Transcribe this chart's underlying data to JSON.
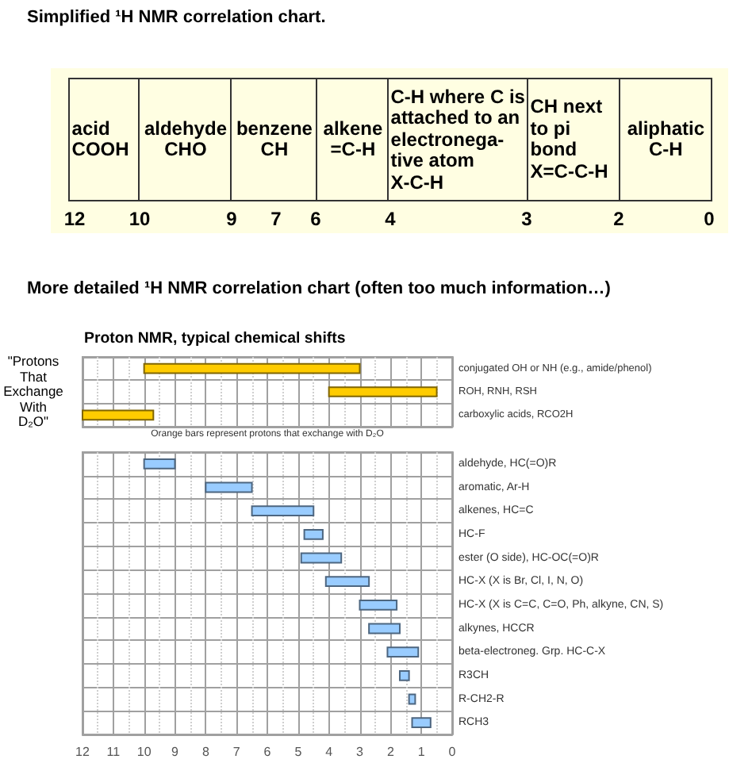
{
  "chart_data": [
    {
      "type": "other",
      "title": "Simplified ¹H NMR correlation chart.",
      "categories": [
        "acid\nCOOH",
        "aldehyde\nCHO",
        "benzene\nCH",
        "alkene\n=C-H",
        "C-H where C is\nattached to an\nelectronega-\ntive atom\nX-C-H",
        "CH next\nto pi\nbond\nX=C-C-H",
        "aliphatic\nC-H"
      ],
      "annotations": [
        "12",
        "10",
        "9",
        "7",
        "6",
        "4",
        "3",
        "2",
        "0"
      ]
    },
    {
      "type": "bar",
      "orientation": "horizontal",
      "title": "More detailed ¹H NMR correlation chart (often too much information…)",
      "subtitle": "Proton NMR, typical chemical shifts",
      "ylabel": "\"Protons That Exchange With D₂O\"",
      "annotations": [
        "Orange bars represent protons that exchange with D₂O"
      ],
      "categories": [
        "conjugated OH or NH (e.g., amide/phenol)",
        "ROH, RNH, RSH",
        "carboxylic acids, RCO2H"
      ],
      "base": [
        3,
        0.5,
        9.7
      ],
      "values": [
        7,
        3.5,
        2.3
      ],
      "color": "#ffcc00",
      "xlim": [
        12,
        0
      ],
      "xticks": [
        12,
        11,
        10,
        9,
        8,
        7,
        6,
        5,
        4,
        3,
        2,
        1,
        0
      ],
      "grid": true,
      "tick_labels": "y"
    },
    {
      "type": "bar",
      "orientation": "horizontal",
      "categories": [
        "aldehyde, HC(=O)R",
        "aromatic, Ar-H",
        "alkenes, HC=C",
        "HC-F",
        "ester (O side), HC-OC(=O)R",
        "HC-X (X is Br, Cl, I, N, O)",
        "HC-X (X is C=C, C=O, Ph, alkyne, CN, S)",
        "alkynes, HCCR",
        "beta-electroneg. Grp. HC-C-X",
        "R3CH",
        "R-CH2-R",
        "RCH3"
      ],
      "base": [
        9,
        6.5,
        4.5,
        4.2,
        3.6,
        2.7,
        1.8,
        1.7,
        1.1,
        1.4,
        1.2,
        0.7
      ],
      "values": [
        1,
        1.5,
        2,
        0.6,
        1.3,
        1.4,
        1.2,
        1,
        1,
        0.3,
        0.2,
        0.6
      ],
      "color": "#99ccff",
      "xlim": [
        12,
        0
      ],
      "xticks": [
        12,
        11,
        10,
        9,
        8,
        7,
        6,
        5,
        4,
        3,
        2,
        1,
        0
      ],
      "grid": true
    }
  ]
}
